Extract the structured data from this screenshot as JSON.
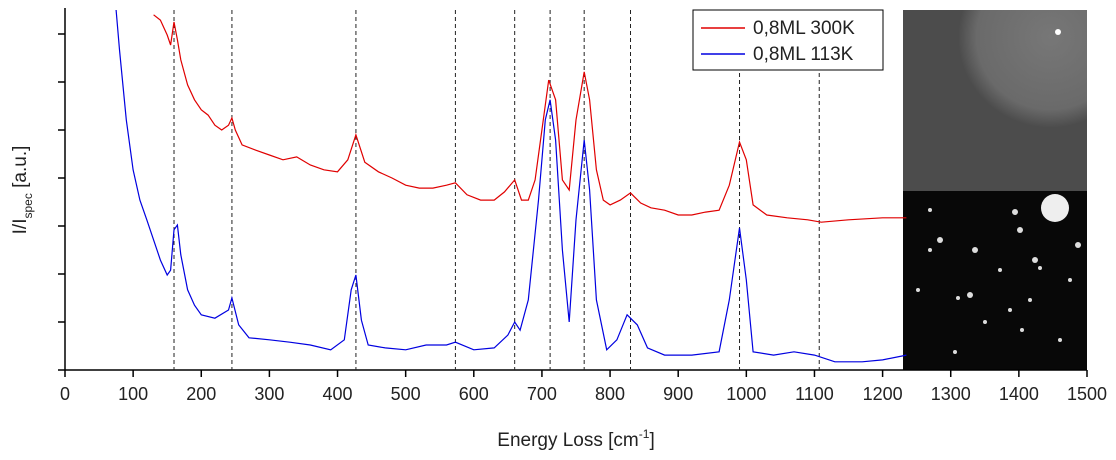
{
  "chart_data": {
    "type": "line",
    "xlabel": [
      "Energy Loss [cm",
      "-1",
      "]"
    ],
    "ylabel": [
      "I/I",
      "spec",
      " [a.u.]"
    ],
    "xlim": [
      0,
      1500
    ],
    "xticks": [
      0,
      100,
      200,
      300,
      400,
      500,
      600,
      700,
      800,
      900,
      1000,
      1100,
      1200,
      1300,
      1400,
      1500
    ],
    "ylim": [
      0,
      7.5
    ],
    "yticks": [
      0,
      1,
      2,
      3,
      4,
      5,
      6,
      7
    ],
    "reference_lines": [
      160,
      245,
      427,
      573,
      660,
      712,
      762,
      830,
      990,
      1107
    ],
    "legend": "top-right",
    "series": [
      {
        "name": "0,8ML 300K",
        "color": "#e00000",
        "x": [
          130,
          140,
          150,
          155,
          160,
          165,
          170,
          180,
          190,
          200,
          210,
          220,
          230,
          240,
          245,
          250,
          260,
          280,
          300,
          320,
          340,
          360,
          380,
          400,
          415,
          427,
          440,
          460,
          480,
          500,
          520,
          540,
          560,
          573,
          590,
          610,
          630,
          645,
          660,
          670,
          680,
          690,
          700,
          710,
          720,
          730,
          740,
          750,
          762,
          770,
          780,
          790,
          800,
          815,
          830,
          845,
          860,
          880,
          900,
          920,
          940,
          960,
          975,
          990,
          1000,
          1010,
          1030,
          1060,
          1090,
          1110,
          1150,
          1200,
          1235
        ],
        "values": [
          7.4,
          7.29,
          6.98,
          6.77,
          7.25,
          6.88,
          6.46,
          5.94,
          5.63,
          5.42,
          5.31,
          5.1,
          5.0,
          5.1,
          5.25,
          5.0,
          4.69,
          4.58,
          4.48,
          4.38,
          4.44,
          4.27,
          4.17,
          4.13,
          4.38,
          4.9,
          4.33,
          4.13,
          4.0,
          3.85,
          3.79,
          3.79,
          3.85,
          3.9,
          3.65,
          3.54,
          3.54,
          3.71,
          3.96,
          3.54,
          3.54,
          3.96,
          5.0,
          6.04,
          5.63,
          3.96,
          3.75,
          5.21,
          6.21,
          5.63,
          4.17,
          3.54,
          3.44,
          3.54,
          3.69,
          3.48,
          3.38,
          3.33,
          3.23,
          3.23,
          3.29,
          3.33,
          3.85,
          4.75,
          4.38,
          3.44,
          3.23,
          3.17,
          3.13,
          3.08,
          3.13,
          3.17,
          3.17
        ]
      },
      {
        "name": "0,8ML 113K",
        "color": "#0000e0",
        "x": [
          75,
          80,
          90,
          100,
          110,
          120,
          130,
          140,
          150,
          155,
          160,
          165,
          170,
          180,
          190,
          200,
          220,
          240,
          245,
          255,
          270,
          300,
          330,
          360,
          390,
          410,
          420,
          427,
          435,
          445,
          470,
          500,
          530,
          560,
          573,
          600,
          630,
          650,
          660,
          668,
          680,
          695,
          705,
          712,
          720,
          730,
          740,
          750,
          762,
          770,
          780,
          795,
          810,
          825,
          840,
          855,
          880,
          920,
          960,
          975,
          990,
          1000,
          1010,
          1040,
          1070,
          1100,
          1130,
          1170,
          1200,
          1235
        ],
        "values": [
          7.5,
          6.67,
          5.21,
          4.17,
          3.54,
          3.13,
          2.71,
          2.29,
          1.98,
          2.08,
          2.92,
          3.02,
          2.4,
          1.67,
          1.35,
          1.15,
          1.08,
          1.25,
          1.5,
          0.94,
          0.67,
          0.63,
          0.58,
          0.52,
          0.42,
          0.63,
          1.67,
          1.98,
          1.04,
          0.52,
          0.46,
          0.42,
          0.52,
          0.52,
          0.58,
          0.42,
          0.46,
          0.73,
          1.0,
          0.83,
          1.46,
          3.54,
          5.21,
          5.63,
          4.79,
          2.5,
          1.0,
          3.13,
          4.79,
          3.75,
          1.46,
          0.42,
          0.63,
          1.15,
          0.94,
          0.46,
          0.31,
          0.31,
          0.38,
          1.46,
          2.96,
          1.88,
          0.38,
          0.31,
          0.38,
          0.31,
          0.17,
          0.17,
          0.21,
          0.31
        ]
      }
    ]
  }
}
